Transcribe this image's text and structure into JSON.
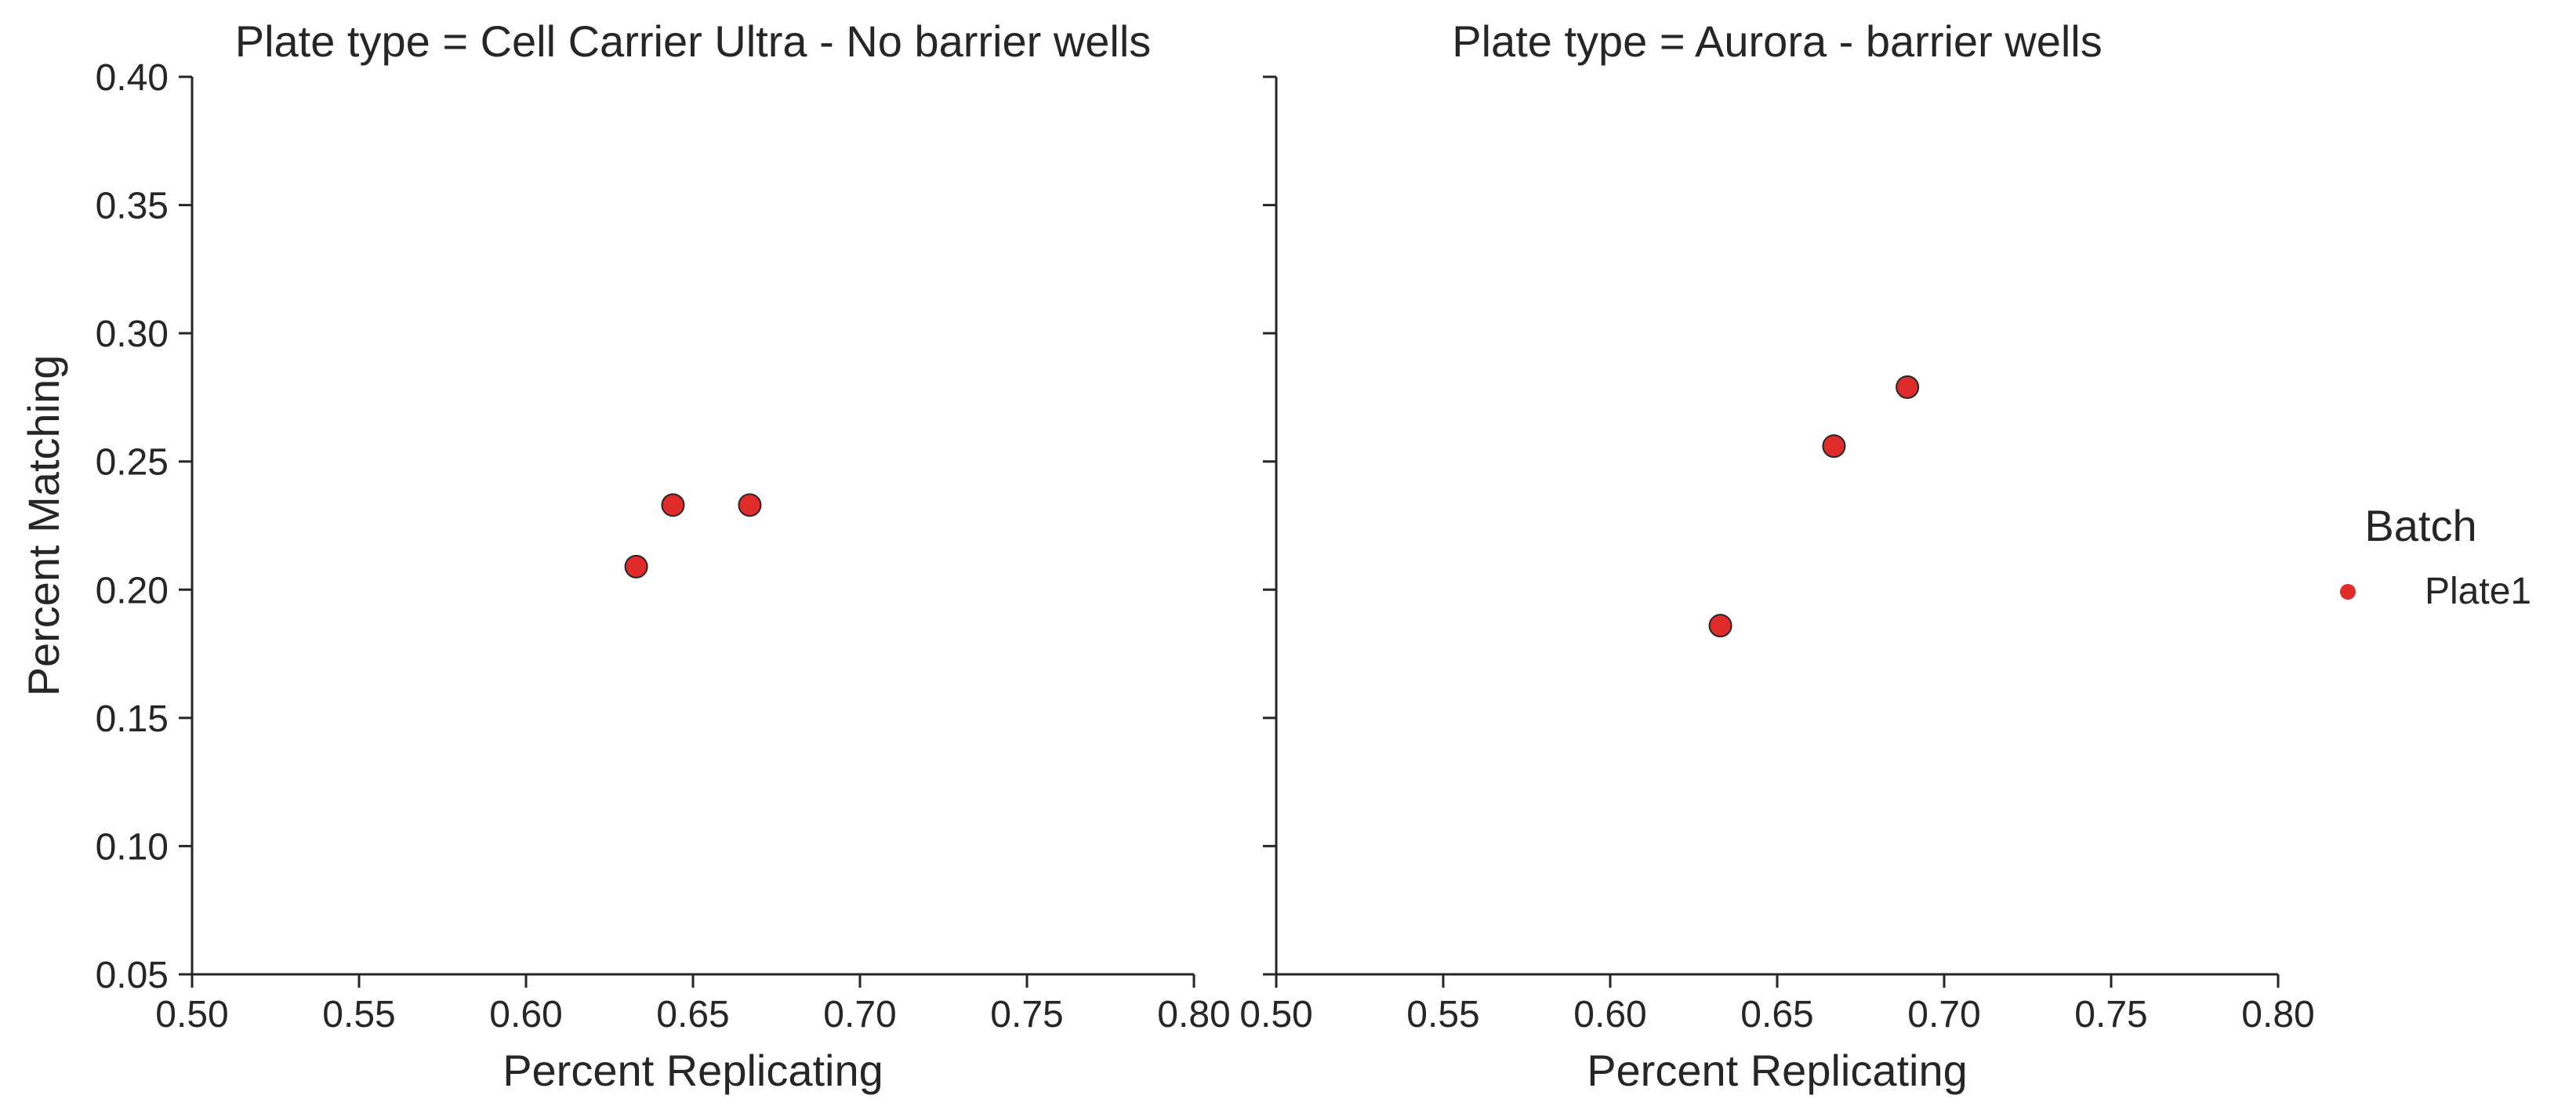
{
  "chart_data": {
    "type": "scatter",
    "xlabel": "Percent Replicating",
    "ylabel": "Percent Matching",
    "xlim": [
      0.5,
      0.8
    ],
    "ylim": [
      0.05,
      0.4
    ],
    "xticks": [
      "0.50",
      "0.55",
      "0.60",
      "0.65",
      "0.70",
      "0.75",
      "0.80"
    ],
    "yticks": [
      "0.05",
      "0.10",
      "0.15",
      "0.20",
      "0.25",
      "0.30",
      "0.35",
      "0.40"
    ],
    "grid": false,
    "legend": {
      "title": "Batch",
      "placement": "right",
      "items": [
        {
          "label": "Plate1",
          "color": "#e02b2b"
        }
      ]
    },
    "panels": [
      {
        "title": "Plate type = Cell Carrier Ultra - No barrier wells",
        "series": [
          {
            "name": "Plate1",
            "color": "#e02b2b",
            "points": [
              [
                0.633,
                0.209
              ],
              [
                0.644,
                0.233
              ],
              [
                0.667,
                0.233
              ]
            ]
          }
        ]
      },
      {
        "title": "Plate type = Aurora - barrier wells",
        "series": [
          {
            "name": "Plate1",
            "color": "#e02b2b",
            "points": [
              [
                0.633,
                0.186
              ],
              [
                0.667,
                0.256
              ],
              [
                0.689,
                0.279
              ]
            ]
          }
        ]
      }
    ]
  }
}
